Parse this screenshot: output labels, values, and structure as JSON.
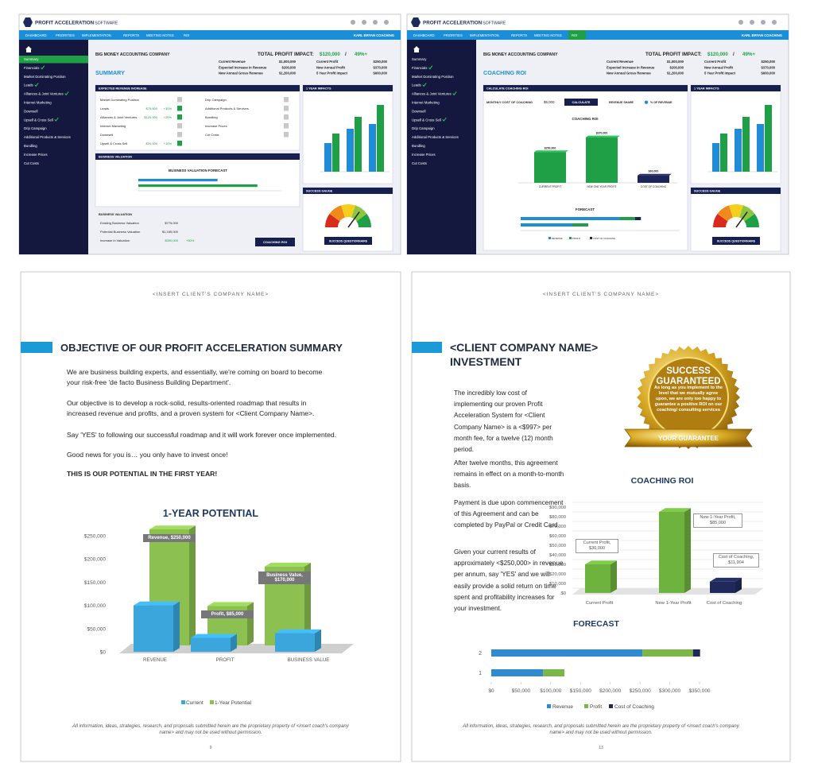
{
  "screens": [
    {
      "logo": "PROFIT ACCELERATION",
      "logo_sub": "SOFTWARE",
      "nav": [
        "DASHBOARD",
        "PRIORITIES",
        "IMPLEMENTATION",
        "REPORTS",
        "MEETING NOTES",
        "ROI"
      ],
      "user": "KARL BRYAN COACHING",
      "sidebar": [
        "Summary",
        "Financials",
        "Market Dominating Position",
        "Leads",
        "Alliances & Joint Ventures",
        "Internet Marketing",
        "Downsell",
        "Upsell & Cross Sell",
        "Drip Campaign",
        "Additional Products & Services",
        "Bundling",
        "Increase Prices",
        "Cut Costs"
      ],
      "checked": [
        1,
        3,
        4,
        7
      ],
      "active_item": 0,
      "company": "BIG MONEY ACCOUNTING COMPANY",
      "impact": {
        "label": "TOTAL PROFIT IMPACT:",
        "value": "$120,000",
        "sep": "/",
        "pct": "49%+"
      },
      "heading": "SUMMARY",
      "metrics": [
        [
          "Current Revenue",
          "$1,000,000"
        ],
        [
          "Expected Increase in Revenue",
          "$200,000"
        ],
        [
          "New Annual Gross Revenue",
          "$1,200,000"
        ],
        [
          "Current Profit",
          "$250,000"
        ],
        [
          "New Annual Profit",
          "$370,000"
        ],
        [
          "5 Year Profit Impact",
          "$600,000"
        ]
      ],
      "revenue_panel": {
        "title": "EXPECTED REVENUE INCREASE",
        "left": [
          [
            "Market Dominating Position"
          ],
          [
            "Leads",
            "$75,000",
            "+30%"
          ],
          [
            "Alliances & Joint Ventures",
            "$125,000",
            "+20%"
          ],
          [
            "Internet Marketing"
          ],
          [
            "Downsell"
          ],
          [
            "Upsell & Cross Sell",
            "$20,000",
            "+10%"
          ]
        ],
        "right": [
          "Drip Campaign",
          "Additional Products & Services",
          "Bundling",
          "Increase Prices",
          "Cut Costs"
        ]
      },
      "impacts": {
        "title": "1 YEAR IMPACTS",
        "series": [
          {
            "color": "#1f8dd6",
            "values": [
              600000,
              900000,
              1000000
            ]
          },
          {
            "color": "#1fa046",
            "values": [
              800000,
              1150000,
              1400000
            ]
          }
        ],
        "ylim": [
          0,
          1500000
        ]
      },
      "valuation": {
        "title": "BUSINESS VALUATION",
        "chart_title": "BUSINESS VALUATION FORECAST",
        "values": [
          775000,
          1165000
        ],
        "colors": [
          "#1f8dd6",
          "#1fa046"
        ],
        "xlim": [
          0,
          1400000
        ]
      },
      "valuation_table": {
        "title": "BUSINESS VALUATION",
        "rows": [
          [
            "Existing Business Valuation",
            "$775,000"
          ],
          [
            "Potential Business Valuation",
            "$1,165,000"
          ],
          [
            "Increase in Valuation",
            "$390,000",
            "+50%"
          ]
        ]
      },
      "gauge": {
        "title": "SUCCESS GAUGE",
        "button": "SUCCESS QUESTIONNAIRE"
      },
      "button": "COACHING ROI"
    },
    {
      "logo": "PROFIT ACCELERATION",
      "logo_sub": "SOFTWARE",
      "nav": [
        "DASHBOARD",
        "PRIORITIES",
        "IMPLEMENTATION",
        "REPORTS",
        "MEETING NOTES",
        "ROI"
      ],
      "active_nav": 5,
      "user": "KARL BRYAN COACHING",
      "sidebar": [
        "Summary",
        "Financials",
        "Market Dominating Position",
        "Leads",
        "Alliances & Joint Ventures",
        "Internet Marketing",
        "Downsell",
        "Upsell & Cross Sell",
        "Drip Campaign",
        "Additional Products & Services",
        "Bundling",
        "Increase Prices",
        "Cut Costs"
      ],
      "checked": [
        1,
        3,
        4,
        7
      ],
      "company": "BIG MONEY ACCOUNTING COMPANY",
      "impact": {
        "label": "TOTAL PROFIT IMPACT:",
        "value": "$120,000",
        "sep": "/",
        "pct": "49%+"
      },
      "heading": "COACHING ROI",
      "metrics": [
        [
          "Current Revenue",
          "$1,000,000"
        ],
        [
          "Expected Increase in Revenue",
          "$200,000"
        ],
        [
          "New Annual Gross Revenue",
          "$1,200,000"
        ],
        [
          "Current Profit",
          "$250,000"
        ],
        [
          "New Annual Profit",
          "$370,000"
        ],
        [
          "5 Year Profit Impact",
          "$600,000"
        ]
      ],
      "calc": {
        "title": "CALCULATE COACHING ROI",
        "label": "MONTHLY COST OF COACHING",
        "value": "$5,000",
        "button": "CALCULATE",
        "share": "REVENUE SHARE",
        "unit": "% OF REVENUE"
      },
      "roi": {
        "title": "COACHING ROI",
        "categories": [
          "CURRENT PROFIT",
          "NEW ONE YEAR PROFIT",
          "COST OF COACHING"
        ],
        "values": [
          250000,
          370000,
          60000
        ],
        "value_labels": [
          "$250,000",
          "$370,000",
          "$60,000"
        ],
        "colors": [
          "#1fa046",
          "#1fa046",
          "#1d2458"
        ],
        "ylim": [
          0,
          400000
        ]
      },
      "forecast": {
        "title": "FORECAST",
        "series": [
          {
            "name": "REVENUE",
            "color": "#1f8dd6",
            "values": [
              1000000,
              520000
            ]
          },
          {
            "name": "PROFIT",
            "color": "#1fa046",
            "values": [
              150000,
              160000
            ]
          },
          {
            "name": "COST OF COACHING",
            "color": "#1d2458",
            "values": [
              60000,
              null
            ]
          }
        ],
        "xlim": [
          0,
          1600000
        ]
      },
      "impacts": {
        "title": "1 YEAR IMPACTS",
        "series": [
          {
            "color": "#1f8dd6",
            "values": [
              600000,
              900000,
              1000000
            ]
          },
          {
            "color": "#1fa046",
            "values": [
              800000,
              1150000,
              1400000
            ]
          }
        ],
        "ylim": [
          0,
          1500000
        ]
      },
      "gauge": {
        "title": "SUCCESS GAUGE",
        "button": "SUCCESS QUESTIONNAIRE"
      }
    }
  ],
  "documents": [
    {
      "header": "<INSERT CLIENT'S COMPANY NAME>",
      "title_lines": [
        "OBJECTIVE OF OUR PROFIT ACCELERATION SUMMARY"
      ],
      "paragraphs": [
        "We are business building experts, and essentially, we're coming on board to become your risk-free 'de facto Business Building Department'.",
        "Our objective is to develop a rock-solid, results-oriented roadmap that results in increased revenue and profits, and a proven system for <Client Company Name>.",
        "Say 'YES' to following our successful roadmap and it will work forever once implemented.",
        "Good news for you is… you only have to invest once!"
      ],
      "emphasis": "THIS IS OUR POTENTIAL IN THE FIRST YEAR!",
      "chart": {
        "type": "bar",
        "title": "1-YEAR POTENTIAL",
        "categories": [
          "REVENUE",
          "PROFIT",
          "BUSINESS VALUE"
        ],
        "series": [
          {
            "name": "Current",
            "color": "#3aa6dc",
            "values": [
              100000,
              30000,
              40000
            ]
          },
          {
            "name": "1-Year Potential",
            "color": "#8cc152",
            "values": [
              250000,
              85000,
              170000
            ],
            "value_labels": [
              "Revenue, $250,000",
              "Profit, $85,000",
              "Business Value, $170,000"
            ]
          }
        ],
        "ylim": [
          0,
          250000
        ],
        "yticks": [
          {
            "value": 0,
            "label": "$0"
          },
          {
            "value": 50000,
            "label": "$50,000"
          },
          {
            "value": 100000,
            "label": "$100,000"
          },
          {
            "value": 150000,
            "label": "$150,000"
          },
          {
            "value": 200000,
            "label": "$200,000"
          },
          {
            "value": 250000,
            "label": "$250,000"
          }
        ]
      },
      "footer": "All information, ideas, strategies, research, and proposals submitted herein are the proprietary property of <insert coach's company name> and may not be used without permission.",
      "page": "9"
    },
    {
      "header": "<INSERT CLIENT'S COMPANY NAME>",
      "title_lines": [
        "<CLIENT COMPANY NAME>",
        "INVESTMENT"
      ],
      "paragraphs": [
        "The incredibly low cost of implementing our proven Profit Acceleration System for <Client Company Name> is a <$997> per month fee, for a twelve (12) month period.",
        "After twelve months, this agreement remains in effect on a month-to-month basis.",
        "Payment is due upon commencement of this Agreement and can be completed by PayPal or Credit Card.",
        "Given your current results of approximately <$250,000> in revenue per annum, say 'YES' and we will easily provide a solid return on time spent and profitability increases for your investment."
      ],
      "seal": {
        "lines": [
          "SUCCESS",
          "GUARANTEED"
        ],
        "text": "As long as you implement to the level that we mutually agree upon, we are only too happy to guarantee a positive ROI on our coaching/ consulting services",
        "ribbon": "YOUR GUARANTEE"
      },
      "roi": {
        "type": "bar",
        "title": "COACHING ROI",
        "categories": [
          "Current Profit",
          "New 1-Year Profit",
          "Cost of Coaching"
        ],
        "values": [
          30000,
          85000,
          11904
        ],
        "value_labels": [
          "Current Profit, $30,000",
          "New 1-Year Profit, $85,000",
          "Cost of Coaching, $11,904"
        ],
        "colors": [
          "#6fb33f",
          "#6fb33f",
          "#1f2a5a"
        ],
        "ylim": [
          0,
          90000
        ],
        "yticks": [
          {
            "value": 0,
            "label": "$0"
          },
          {
            "value": 10000,
            "label": "$10,000"
          },
          {
            "value": 20000,
            "label": "$20,000"
          },
          {
            "value": 30000,
            "label": "$30,000"
          },
          {
            "value": 40000,
            "label": "$40,000"
          },
          {
            "value": 50000,
            "label": "$50,000"
          },
          {
            "value": 60000,
            "label": "$60,000"
          },
          {
            "value": 70000,
            "label": "$70,000"
          },
          {
            "value": 80000,
            "label": "$80,000"
          },
          {
            "value": 90000,
            "label": "$90,000"
          }
        ]
      },
      "forecast": {
        "type": "bar",
        "title": "FORECAST",
        "categories": [
          "1",
          "2"
        ],
        "series": [
          {
            "name": "Revenue",
            "color": "#2f8ad0",
            "values": [
              87000,
              254000
            ]
          },
          {
            "name": "Profit",
            "color": "#7ab648",
            "values": [
              36000,
              85000
            ]
          },
          {
            "name": "Cost of Coaching",
            "color": "#1f2a5a",
            "values": [
              null,
              11904
            ]
          }
        ],
        "xlim": [
          0,
          350000
        ],
        "xticks": [
          {
            "value": 0,
            "label": "$0"
          },
          {
            "value": 50000,
            "label": "$50,000"
          },
          {
            "value": 100000,
            "label": "$100,000"
          },
          {
            "value": 150000,
            "label": "$150,000"
          },
          {
            "value": 200000,
            "label": "$200,000"
          },
          {
            "value": 250000,
            "label": "$250,000"
          },
          {
            "value": 300000,
            "label": "$300,000"
          },
          {
            "value": 350000,
            "label": "$350,000"
          }
        ]
      },
      "footer": "All information, ideas, strategies, research, and proposals submitted herein are the proprietary property of <insert coach's company name> and may not be used without permission.",
      "page": "13"
    }
  ]
}
